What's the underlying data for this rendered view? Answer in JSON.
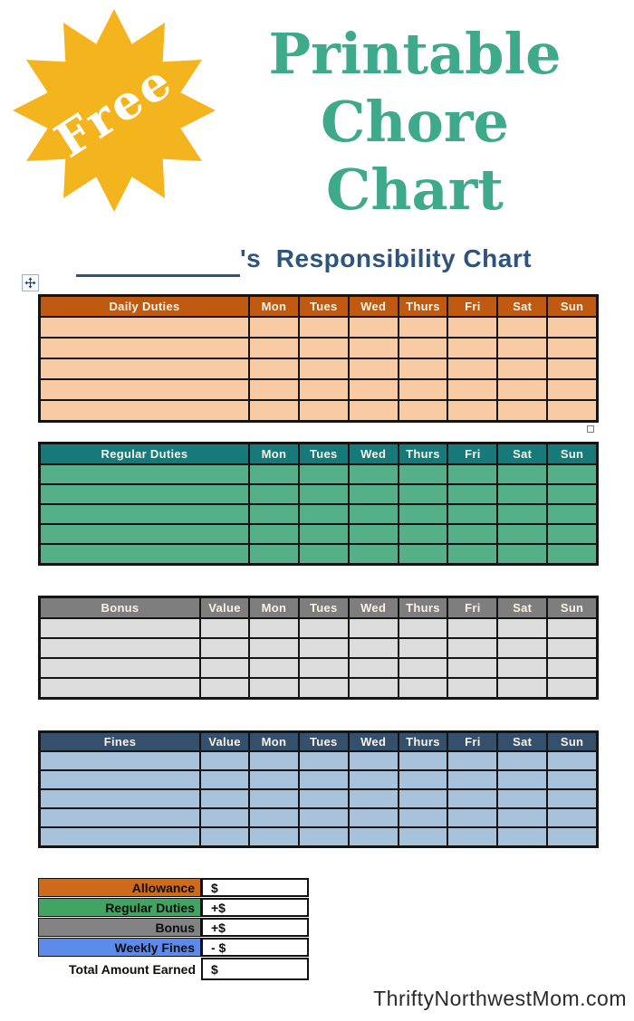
{
  "badge": {
    "label": "Free",
    "star_color": "#F4B41E",
    "label_color": "#FFFFFF"
  },
  "title": {
    "lines": [
      "Printable",
      "Chore",
      "Chart"
    ],
    "color": "#3EA98B"
  },
  "heading": {
    "text": "'s  Responsibility Chart",
    "color": "#2F547C"
  },
  "days": [
    "Mon",
    "Tues",
    "Wed",
    "Thurs",
    "Fri",
    "Sat",
    "Sun"
  ],
  "tables": [
    {
      "label": "Daily Duties",
      "value_column": "",
      "rows": 5,
      "header_bg": "#C05A11",
      "body_bg": "#F8CBA4"
    },
    {
      "label": "Regular Duties",
      "value_column": "",
      "rows": 5,
      "header_bg": "#17797A",
      "body_bg": "#55B08A"
    },
    {
      "label": "Bonus",
      "value_column": "Value",
      "rows": 4,
      "header_bg": "#7E7E7E",
      "body_bg": "#DCDCDC"
    },
    {
      "label": "Fines",
      "value_column": "Value",
      "rows": 5,
      "header_bg": "#35506C",
      "body_bg": "#A9C2DC"
    }
  ],
  "summary": {
    "rows": [
      {
        "label": "Allowance",
        "value": "$",
        "bg": "#CE6A1C"
      },
      {
        "label": "Regular Duties",
        "value": "+$",
        "bg": "#42A463"
      },
      {
        "label": "Bonus",
        "value": "+$",
        "bg": "#838383"
      },
      {
        "label": "Weekly Fines",
        "value": "- $",
        "bg": "#5C8AEC"
      },
      {
        "label": "Total Amount Earned",
        "value": "$",
        "bg": ""
      }
    ]
  },
  "watermark": "ThriftyNorthwestMom.com"
}
